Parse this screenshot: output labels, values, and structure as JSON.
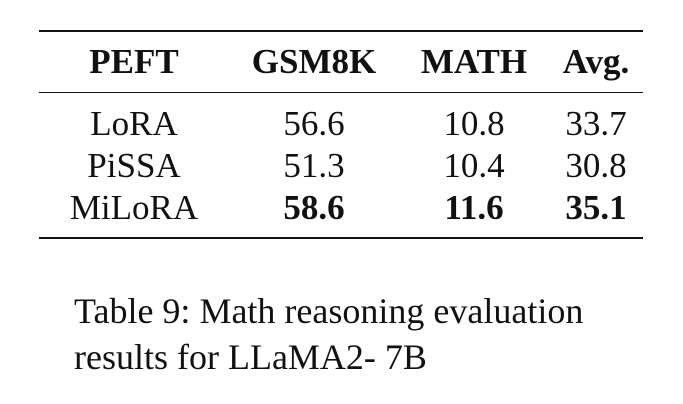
{
  "table": {
    "headers": [
      "PEFT",
      "GSM8K",
      "MATH",
      "Avg."
    ],
    "rows": [
      {
        "peft": "LoRA",
        "gsm8k": "56.6",
        "math": "10.8",
        "avg": "33.7"
      },
      {
        "peft": "PiSSA",
        "gsm8k": "51.3",
        "math": "10.4",
        "avg": "30.8"
      },
      {
        "peft": "MiLoRA",
        "gsm8k": "58.6",
        "math": "11.6",
        "avg": "35.1"
      }
    ]
  },
  "caption": {
    "line1": "Table 9: Math reasoning evaluation",
    "line2": "results for LLaMA2- 7B"
  }
}
